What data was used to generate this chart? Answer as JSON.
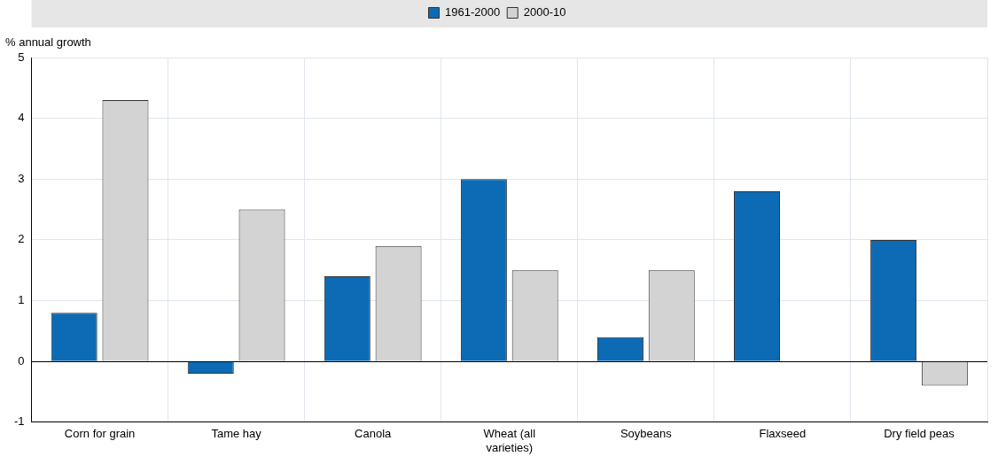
{
  "chart_data": {
    "type": "bar",
    "ylabel": "% annual growth",
    "categories": [
      "Corn for grain",
      "Tame hay",
      "Canola",
      "Wheat (all varieties)",
      "Soybeans",
      "Flaxseed",
      "Dry field peas"
    ],
    "series": [
      {
        "name": "1961-2000",
        "color": "#0c6bb4",
        "values": [
          0.8,
          -0.2,
          1.4,
          3.0,
          0.4,
          2.8,
          2.0
        ]
      },
      {
        "name": "2000-10",
        "color": "#d3d3d3",
        "values": [
          4.3,
          2.5,
          1.9,
          1.5,
          1.5,
          null,
          -0.4
        ]
      }
    ],
    "ylim": [
      -1,
      5
    ],
    "yticks": [
      -1,
      0,
      1,
      2,
      3,
      4,
      5
    ],
    "grid": true,
    "legend": "top"
  }
}
